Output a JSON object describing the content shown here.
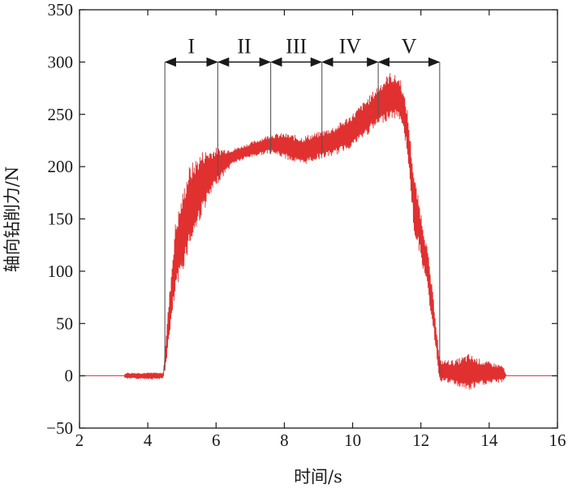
{
  "chart_data": {
    "type": "line",
    "title": "",
    "xlabel": "时间/s",
    "ylabel": "轴向钻削力/N",
    "xlim": [
      2,
      16
    ],
    "ylim": [
      -50,
      350
    ],
    "x_ticks": [
      2,
      4,
      6,
      8,
      10,
      12,
      14,
      16
    ],
    "x_tick_labels": [
      "2",
      "4",
      "6",
      "8",
      "10",
      "12",
      "14",
      "16"
    ],
    "y_ticks": [
      -50,
      0,
      50,
      100,
      150,
      200,
      250,
      300,
      350
    ],
    "y_tick_labels": [
      "−50",
      "0",
      "50",
      "100",
      "150",
      "200",
      "250",
      "300",
      "350"
    ],
    "grid": false,
    "line_color": "#e03030",
    "series": [
      {
        "values": [
          {
            "t": 2.0,
            "mean": 0,
            "amp": 0
          },
          {
            "t": 3.3,
            "mean": 0,
            "amp": 0
          },
          {
            "t": 3.35,
            "mean": 0,
            "amp": 3
          },
          {
            "t": 4.45,
            "mean": 0,
            "amp": 3
          },
          {
            "t": 4.55,
            "mean": 30,
            "amp": 15
          },
          {
            "t": 4.8,
            "mean": 110,
            "amp": 35
          },
          {
            "t": 5.2,
            "mean": 160,
            "amp": 40
          },
          {
            "t": 5.6,
            "mean": 185,
            "amp": 30
          },
          {
            "t": 6.0,
            "mean": 200,
            "amp": 18
          },
          {
            "t": 6.5,
            "mean": 210,
            "amp": 7
          },
          {
            "t": 7.0,
            "mean": 216,
            "amp": 7
          },
          {
            "t": 7.6,
            "mean": 222,
            "amp": 9
          },
          {
            "t": 8.0,
            "mean": 220,
            "amp": 12
          },
          {
            "t": 8.5,
            "mean": 215,
            "amp": 14
          },
          {
            "t": 9.0,
            "mean": 220,
            "amp": 13
          },
          {
            "t": 9.5,
            "mean": 225,
            "amp": 14
          },
          {
            "t": 10.0,
            "mean": 235,
            "amp": 16
          },
          {
            "t": 10.5,
            "mean": 250,
            "amp": 18
          },
          {
            "t": 10.8,
            "mean": 260,
            "amp": 20
          },
          {
            "t": 11.1,
            "mean": 268,
            "amp": 22
          },
          {
            "t": 11.4,
            "mean": 265,
            "amp": 20
          },
          {
            "t": 11.6,
            "mean": 235,
            "amp": 20
          },
          {
            "t": 11.8,
            "mean": 165,
            "amp": 28
          },
          {
            "t": 12.0,
            "mean": 135,
            "amp": 22
          },
          {
            "t": 12.2,
            "mean": 100,
            "amp": 20
          },
          {
            "t": 12.4,
            "mean": 50,
            "amp": 15
          },
          {
            "t": 12.55,
            "mean": 5,
            "amp": 10
          },
          {
            "t": 13.0,
            "mean": 3,
            "amp": 12
          },
          {
            "t": 13.4,
            "mean": 3,
            "amp": 18
          },
          {
            "t": 13.8,
            "mean": 3,
            "amp": 12
          },
          {
            "t": 14.4,
            "mean": 2,
            "amp": 8
          },
          {
            "t": 14.5,
            "mean": 0,
            "amp": 0
          },
          {
            "t": 16.0,
            "mean": 0,
            "amp": 0
          }
        ]
      }
    ],
    "phase_boundaries": [
      4.5,
      6.05,
      7.6,
      9.1,
      10.75,
      12.55
    ],
    "phases": [
      {
        "label": "I",
        "start": 4.5,
        "end": 6.05
      },
      {
        "label": "II",
        "start": 6.05,
        "end": 7.6
      },
      {
        "label": "III",
        "start": 7.6,
        "end": 9.1
      },
      {
        "label": "IV",
        "start": 9.1,
        "end": 10.75
      },
      {
        "label": "V",
        "start": 10.75,
        "end": 12.55
      }
    ],
    "phase_arrow_y": 300
  }
}
